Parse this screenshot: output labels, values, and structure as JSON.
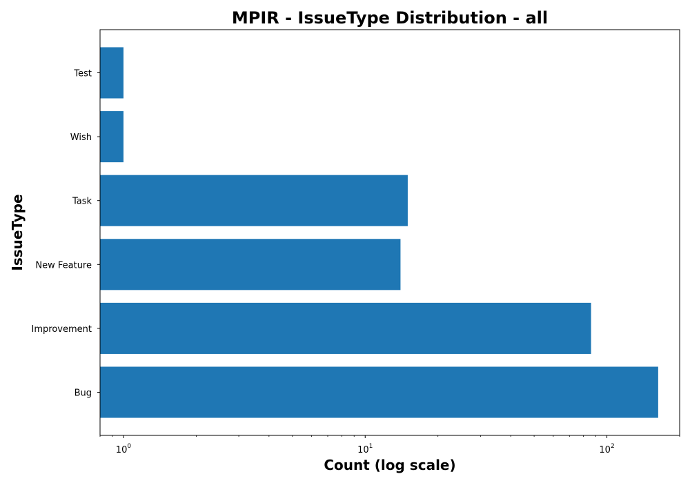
{
  "chart_data": {
    "type": "bar",
    "orientation": "horizontal",
    "title": "MPIR - IssueType Distribution - all",
    "xlabel": "Count (log scale)",
    "ylabel": "IssueType",
    "x_scale": "log",
    "xlim": [
      0.8,
      200
    ],
    "categories": [
      "Bug",
      "Improvement",
      "New Feature",
      "Task",
      "Wish",
      "Test"
    ],
    "values": [
      163,
      86,
      14,
      15,
      1,
      1
    ],
    "x_ticks": [
      {
        "value": 1,
        "base": "10",
        "exponent": "0"
      },
      {
        "value": 10,
        "base": "10",
        "exponent": "1"
      },
      {
        "value": 100,
        "base": "10",
        "exponent": "2"
      }
    ],
    "grid": false,
    "colors": {
      "bar": "#1f77b4",
      "axis": "#000000"
    }
  }
}
